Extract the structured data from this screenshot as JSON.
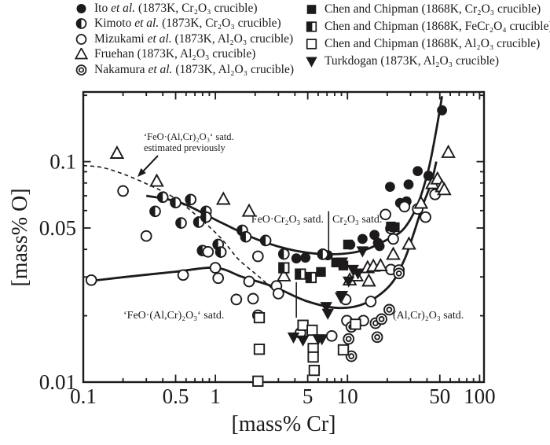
{
  "colors": {
    "ink": "#1c1a1a",
    "background": "#ffffff"
  },
  "legend": {
    "left": [
      {
        "marker": "filled-circle",
        "pre": "Ito ",
        "it": "et al.",
        "post": " (1873K, Cr₂O₃ crucible)"
      },
      {
        "marker": "half-circle",
        "pre": "Kimoto ",
        "it": "et al.",
        "post": " (1873K, Cr₂O₃ crucible)"
      },
      {
        "marker": "open-circle",
        "pre": "Mizukami ",
        "it": "et al.",
        "post": " (1873K, Al₂O₃ crucible)"
      },
      {
        "marker": "open-triangle",
        "pre": "Fruehan (1873K, Al₂O₃ crucible)",
        "it": "",
        "post": ""
      },
      {
        "marker": "double-circle",
        "pre": "Nakamura ",
        "it": "et al.",
        "post": " (1873K, Al₂O₃ crucible)"
      }
    ],
    "right": [
      {
        "marker": "filled-square",
        "pre": "Chen and Chipman (1868K, Cr₂O₃ crucible)",
        "it": "",
        "post": ""
      },
      {
        "marker": "half-square",
        "pre": "Chen and Chipman (1868K, FeCr₂O₄ crucible)",
        "it": "",
        "post": ""
      },
      {
        "marker": "open-square",
        "pre": "Chen and Chipman (1868K, Al₂O₃ crucible)",
        "it": "",
        "post": ""
      },
      {
        "marker": "filled-triangle-down",
        "pre": " Turkdogan (1873K, Al₂O₃ crucible)",
        "it": "",
        "post": ""
      }
    ]
  },
  "annotations": {
    "estimated_line1": "‘FeO·(Al,Cr)₂O₃‘ satd.",
    "estimated_line2": "estimated previously",
    "feo_cr2o3": "FeO·Cr₂O₃ satd.",
    "cr2o3": "Cr₂O₃ satd.",
    "feo_alcr": "‘FeO·(Al,Cr)₂O₃‘ satd.",
    "alcr": "(Al,Cr)₂O₃ satd."
  },
  "chart_data": {
    "type": "scatter",
    "xlabel": "[mass% Cr]",
    "ylabel": "[mass% O]",
    "x_scale": "log",
    "y_scale": "log",
    "xlim": [
      0.1,
      108
    ],
    "ylim": [
      0.01,
      0.207
    ],
    "grid": false,
    "x_major_ticks": [
      0.1,
      0.5,
      1,
      5,
      10,
      50,
      100
    ],
    "x_major_labels": [
      "0.1",
      "0.5",
      "1",
      "5",
      "10",
      "50",
      "100"
    ],
    "x_minor_ticks": [
      0.2,
      0.3,
      0.4,
      0.6,
      0.7,
      0.8,
      0.9,
      2,
      3,
      4,
      6,
      7,
      8,
      9,
      20,
      30,
      40,
      60,
      70,
      80,
      90
    ],
    "y_major_ticks": [
      0.01,
      0.05,
      0.1
    ],
    "y_major_labels": [
      "0.01",
      "0.05",
      "0.1"
    ],
    "y_minor_ticks": [
      0.02,
      0.03,
      0.04,
      0.06,
      0.07,
      0.08,
      0.09,
      0.2
    ],
    "series": [
      {
        "id": "ito",
        "name": "Ito et al. (1873K, Cr2O3 crucible)",
        "marker": "filled-circle",
        "points": [
          [
            4.1,
            0.0364
          ],
          [
            4.8,
            0.0367
          ],
          [
            7.1,
            0.0376
          ],
          [
            10.5,
            0.042
          ],
          [
            13,
            0.0446
          ],
          [
            16,
            0.0465
          ],
          [
            17,
            0.0428
          ],
          [
            17.5,
            0.0414
          ],
          [
            21,
            0.0769
          ],
          [
            25,
            0.065
          ],
          [
            28,
            0.066
          ],
          [
            29,
            0.0788
          ],
          [
            34,
            0.0906
          ],
          [
            41,
            0.0863
          ],
          [
            52,
            0.171
          ]
        ]
      },
      {
        "id": "kimoto",
        "name": "Kimoto et al. (1873K, Cr2O3 crucible)",
        "marker": "half-circle",
        "points": [
          [
            0.35,
            0.0595
          ],
          [
            0.4,
            0.069
          ],
          [
            0.5,
            0.0652
          ],
          [
            0.55,
            0.0527
          ],
          [
            0.65,
            0.0673
          ],
          [
            0.75,
            0.0532
          ],
          [
            0.8,
            0.0395
          ],
          [
            0.85,
            0.0595
          ],
          [
            0.85,
            0.056
          ],
          [
            1.05,
            0.0421
          ],
          [
            1.1,
            0.0389
          ],
          [
            1.6,
            0.0488
          ],
          [
            1.7,
            0.0456
          ],
          [
            2.4,
            0.0439
          ],
          [
            3.3,
            0.0381
          ],
          [
            6.5,
            0.038
          ]
        ]
      },
      {
        "id": "mizukami",
        "name": "Mizukami et al. (1873K, Al2O3 crucible)",
        "marker": "open-circle",
        "points": [
          [
            0.115,
            0.029
          ],
          [
            0.2,
            0.0736
          ],
          [
            0.3,
            0.046
          ],
          [
            0.57,
            0.0306
          ],
          [
            0.88,
            0.039
          ],
          [
            1.0,
            0.033
          ],
          [
            1.05,
            0.0296
          ],
          [
            1.44,
            0.0237
          ],
          [
            1.8,
            0.0286
          ],
          [
            1.93,
            0.0239
          ],
          [
            2.1,
            0.0372
          ],
          [
            2.1,
            0.0201
          ],
          [
            2.9,
            0.0273
          ],
          [
            3.0,
            0.0252
          ],
          [
            4.4,
            0.0167
          ],
          [
            7.6,
            0.0162
          ],
          [
            9.7,
            0.0237
          ],
          [
            9.9,
            0.019
          ],
          [
            13.2,
            0.019
          ],
          [
            15,
            0.0232
          ],
          [
            19.4,
            0.0576
          ],
          [
            21.3,
            0.0497
          ],
          [
            21.3,
            0.0324
          ],
          [
            22.2,
            0.0446
          ],
          [
            24.5,
            0.0322
          ],
          [
            27,
            0.0625
          ],
          [
            34,
            0.061
          ],
          [
            39,
            0.056
          ],
          [
            46,
            0.071
          ],
          [
            47,
            0.0794
          ]
        ]
      },
      {
        "id": "fruehan",
        "name": "Fruehan (1873K, Al2O3 crucible)",
        "marker": "open-triangle",
        "points": [
          [
            0.18,
            0.109
          ],
          [
            0.36,
            0.0814
          ],
          [
            1.15,
            0.0674
          ],
          [
            1.8,
            0.0595
          ],
          [
            3.3,
            0.0303
          ],
          [
            10.4,
            0.029
          ],
          [
            11.7,
            0.0303
          ],
          [
            14.2,
            0.033
          ],
          [
            14.5,
            0.0287
          ],
          [
            15.7,
            0.0335
          ],
          [
            17.8,
            0.0337
          ],
          [
            22.2,
            0.0379
          ],
          [
            29.2,
            0.0422
          ],
          [
            36,
            0.0647
          ],
          [
            44,
            0.0794
          ],
          [
            48,
            0.0833
          ],
          [
            52,
            0.0769
          ],
          [
            54,
            0.0745
          ],
          [
            58,
            0.11
          ]
        ]
      },
      {
        "id": "nakamura",
        "name": "Nakamura et al. (1873K, Al2O3 crucible)",
        "marker": "double-circle",
        "points": [
          [
            10.2,
            0.0157
          ],
          [
            10.7,
            0.0178
          ],
          [
            10.7,
            0.0131
          ],
          [
            16.3,
            0.0185
          ],
          [
            16.8,
            0.016
          ],
          [
            18.1,
            0.0193
          ],
          [
            20.7,
            0.0213
          ],
          [
            24.5,
            0.0311
          ]
        ]
      },
      {
        "id": "chen-cr2o3",
        "name": "Chen and Chipman (1868K, Cr2O3 crucible)",
        "marker": "filled-square",
        "points": [
          [
            6.3,
            0.0316
          ],
          [
            8.2,
            0.0349
          ],
          [
            9.3,
            0.0338
          ],
          [
            10.1,
            0.0421
          ],
          [
            21.3,
            0.0508
          ],
          [
            22.8,
            0.0504
          ]
        ]
      },
      {
        "id": "chen-fecr2o4",
        "name": "Chen and Chipman (1868K, FeCr2O4 crucible)",
        "marker": "half-square",
        "points": [
          [
            3.3,
            0.033
          ],
          [
            4.4,
            0.0309
          ],
          [
            5.3,
            0.0298
          ]
        ]
      },
      {
        "id": "chen-al2o3",
        "name": "Chen and Chipman (1868K, Al2O3 crucible)",
        "marker": "open-square",
        "points": [
          [
            2.1,
            0.0101
          ],
          [
            2.15,
            0.0141
          ],
          [
            2.15,
            0.0196
          ],
          [
            4.6,
            0.0181
          ],
          [
            5.4,
            0.0172
          ],
          [
            5.5,
            0.0142
          ],
          [
            5.5,
            0.013
          ],
          [
            5.6,
            0.0113
          ],
          [
            9.3,
            0.014
          ],
          [
            11.5,
            0.0183
          ]
        ]
      },
      {
        "id": "turkdogan",
        "name": "Turkdogan (1873K, Al2O3 crucible)",
        "marker": "filled-triangle-down",
        "points": [
          [
            3.9,
            0.016
          ],
          [
            4.6,
            0.0155
          ],
          [
            6.0,
            0.0157
          ],
          [
            6.4,
            0.0157
          ],
          [
            6.9,
            0.022
          ],
          [
            7.1,
            0.0205
          ],
          [
            8.9,
            0.0243
          ],
          [
            9.1,
            0.0247
          ],
          [
            9.1,
            0.035
          ],
          [
            10.2,
            0.0287
          ],
          [
            11,
            0.0324
          ],
          [
            12,
            0.0312
          ],
          [
            13,
            0.0393
          ]
        ]
      }
    ],
    "curves": [
      {
        "id": "upper-solid",
        "style": "solid",
        "points": [
          [
            0.3,
            0.07
          ],
          [
            0.55,
            0.065
          ],
          [
            1.1,
            0.053
          ],
          [
            2.15,
            0.044
          ],
          [
            4.0,
            0.0395
          ],
          [
            7.4,
            0.038
          ],
          [
            13,
            0.0395
          ],
          [
            21,
            0.045
          ],
          [
            27,
            0.05
          ],
          [
            34,
            0.064
          ],
          [
            41,
            0.092
          ],
          [
            47,
            0.139
          ],
          [
            52,
            0.198
          ]
        ]
      },
      {
        "id": "lower-solid",
        "style": "solid",
        "points": [
          [
            0.11,
            0.0287
          ],
          [
            0.21,
            0.03
          ],
          [
            0.48,
            0.0316
          ],
          [
            1.0,
            0.033
          ],
          [
            1.6,
            0.03
          ],
          [
            2.8,
            0.027
          ],
          [
            4.9,
            0.0233
          ],
          [
            8.5,
            0.0217
          ],
          [
            13.7,
            0.0228
          ],
          [
            21,
            0.0275
          ],
          [
            27,
            0.036
          ],
          [
            32,
            0.048
          ],
          [
            37,
            0.063
          ],
          [
            43,
            0.08
          ],
          [
            47,
            0.1
          ]
        ]
      },
      {
        "id": "dashed-estimated",
        "style": "dashed",
        "points": [
          [
            0.1,
            0.096
          ],
          [
            0.14,
            0.094
          ],
          [
            0.21,
            0.087
          ],
          [
            0.32,
            0.078
          ],
          [
            0.48,
            0.069
          ],
          [
            0.72,
            0.057
          ],
          [
            1.1,
            0.045
          ],
          [
            1.5,
            0.036
          ],
          [
            2.15,
            0.03
          ],
          [
            2.8,
            0.026
          ]
        ]
      }
    ],
    "dividers": [
      {
        "id": "cr2o3-boundary",
        "x": 7.2,
        "y1": 0.0596,
        "y2": 0.0381
      },
      {
        "id": "alcr2o3-boundary",
        "x": 4.1,
        "y1": 0.0284,
        "y2": 0.0196
      }
    ]
  }
}
